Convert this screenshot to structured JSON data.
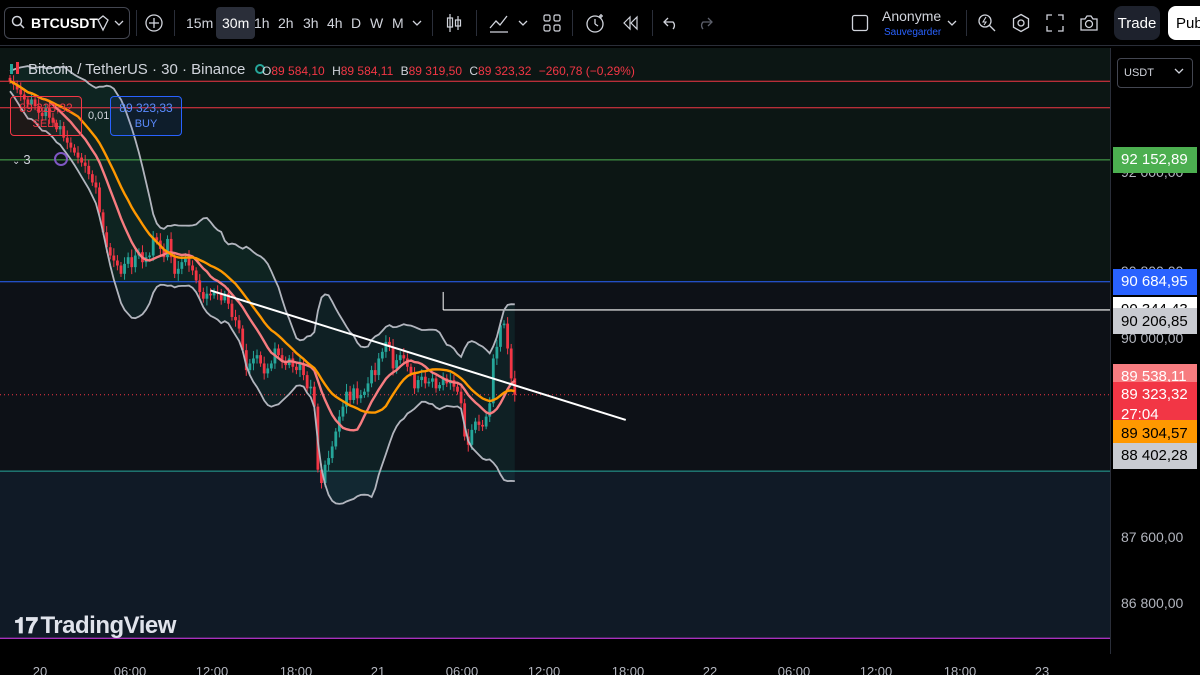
{
  "toolbar": {
    "symbol": "BTCUSDT",
    "timeframes": [
      "15m",
      "30m",
      "1h",
      "2h",
      "3h",
      "4h",
      "D",
      "W",
      "M"
    ],
    "active_timeframe": "30m",
    "user_name": "Anonyme",
    "save_label": "Sauvegarder",
    "trade_label": "Trade",
    "publish_label": "Pub"
  },
  "legend": {
    "title": "Bitcoin / TetherUS · 30 · Binance",
    "o_key": "O",
    "o_val": "89 584,10",
    "h_key": "H",
    "h_val": "89 584,11",
    "b_key": "B",
    "b_val": "89 319,50",
    "c_key": "C",
    "c_val": "89 323,32",
    "change": "−260,78 (−0,29%)",
    "sell_price": "89 323,32",
    "sell_label": "SELL",
    "buy_price": "89 323,33",
    "buy_label": "BUY",
    "spread": "0,01",
    "indicator_count": "3"
  },
  "price_axis": {
    "currency": "USDT",
    "ticks": [
      "92 000,00",
      "90 800,00",
      "90 000,00",
      "87 600,00",
      "86 800,00"
    ],
    "tags": [
      {
        "label": "92 152,89",
        "price": 92152.89,
        "bg": "#4caf50",
        "fg": "#ffffff"
      },
      {
        "label": "90 684,95",
        "price": 90684.95,
        "bg": "#2962ff",
        "fg": "#ffffff"
      },
      {
        "label": "90 344,43",
        "price": 90344.43,
        "bg": "#ffffff",
        "fg": "#000000"
      },
      {
        "label": "90 206,85",
        "price": 90206.85,
        "bg": "#c9cbd1",
        "fg": "#000000"
      },
      {
        "label": "89 538,11",
        "price": 89538.11,
        "bg": "#f77c80",
        "fg": "#ffffff"
      },
      {
        "label": "89 323,32",
        "price": 89323.32,
        "bg": "#f23645",
        "fg": "#ffffff"
      },
      {
        "label": "27:04",
        "price": 89090,
        "bg": "#f23645",
        "fg": "#ffffff"
      },
      {
        "label": "89 304,57",
        "price": 88860,
        "bg": "#ff9800",
        "fg": "#000000"
      },
      {
        "label": "88 402,28",
        "price": 88590,
        "bg": "#c9cbd1",
        "fg": "#000000"
      }
    ]
  },
  "time_axis": {
    "labels": [
      "20",
      "06:00",
      "12:00",
      "18:00",
      "21",
      "06:00",
      "12:00",
      "18:00",
      "22",
      "06:00",
      "12:00",
      "18:00",
      "23"
    ]
  },
  "branding": {
    "logo_text": "TradingView"
  },
  "colors": {
    "up": "#26a69a",
    "down": "#f23645",
    "ma_fast": "#ff9800",
    "ma_slow": "#f77c80",
    "band": "#b2b5be",
    "trendline": "#ffffff"
  },
  "chart_data": {
    "type": "candlestick",
    "symbol": "Bitcoin / TetherUS",
    "interval": "30",
    "exchange": "Binance",
    "ylim": [
      86200,
      93500
    ],
    "horizontal_levels": [
      {
        "price": 93100,
        "color": "#f23645"
      },
      {
        "price": 92780,
        "color": "#f23645"
      },
      {
        "price": 92152.89,
        "color": "#4caf50"
      },
      {
        "price": 90684.95,
        "color": "#2962ff"
      },
      {
        "price": 88402.28,
        "color": "#26a69a"
      },
      {
        "price": 86390,
        "color": "#e040fb"
      }
    ],
    "resistance_line": {
      "from_bar": 121,
      "to_bar": 123,
      "price": 90344.43
    },
    "trendline": {
      "start": {
        "bar": 56,
        "price": 90580
      },
      "end": {
        "bar": 172,
        "price": 89020
      }
    },
    "close": [
      93100,
      93060,
      93000,
      92940,
      92880,
      92820,
      92880,
      92800,
      92720,
      92680,
      92780,
      92660,
      92600,
      92520,
      92560,
      92420,
      92360,
      92300,
      92240,
      92180,
      92120,
      92080,
      91980,
      91880,
      91820,
      91520,
      91280,
      91100,
      91000,
      90940,
      90880,
      90780,
      90900,
      90980,
      90860,
      91000,
      91040,
      90920,
      90980,
      91000,
      91220,
      91180,
      91080,
      90980,
      91200,
      90980,
      90780,
      90840,
      90920,
      90980,
      90880,
      90820,
      90700,
      90560,
      90480,
      90540,
      90520,
      90560,
      90540,
      90460,
      90540,
      90420,
      90260,
      90220,
      90120,
      89860,
      89620,
      89700,
      89760,
      89800,
      89700,
      89580,
      89640,
      89700,
      89880,
      89800,
      89720,
      89680,
      89760,
      89660,
      89620,
      89700,
      89560,
      89400,
      89420,
      89180,
      88420,
      88260,
      88480,
      88560,
      88700,
      88880,
      89060,
      89180,
      89360,
      89260,
      89400,
      89280,
      89320,
      89360,
      89460,
      89620,
      89560,
      89760,
      89840,
      89960,
      89900,
      89640,
      89740,
      89800,
      89760,
      89660,
      89580,
      89400,
      89500,
      89540,
      89460,
      89480,
      89520,
      89400,
      89440,
      89520,
      89460,
      89500,
      89420,
      89360,
      89220,
      88820,
      88720,
      88900,
      89000,
      88960,
      88940,
      89060,
      89220,
      89760,
      89900,
      90160,
      90180,
      89880,
      89520,
      89323
    ]
  }
}
